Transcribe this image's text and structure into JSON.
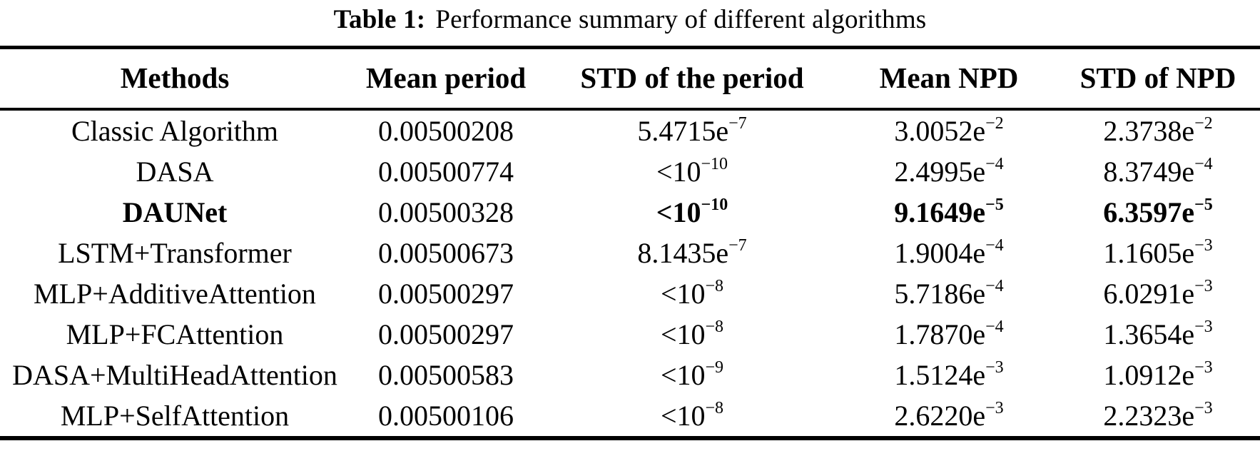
{
  "caption": {
    "label": "Table 1:",
    "text": "Performance summary of different algorithms"
  },
  "columns": [
    "Methods",
    "Mean period",
    "STD of the period",
    "Mean NPD",
    "STD of NPD"
  ],
  "rows": [
    {
      "method": "Classic Algorithm",
      "emphasis": false,
      "mean_period": "0.00500208",
      "std_period": {
        "base": "5.4715e",
        "sup": "−7"
      },
      "mean_npd": {
        "base": "3.0052e",
        "sup": "−2"
      },
      "std_npd": {
        "base": "2.3738e",
        "sup": "−2"
      }
    },
    {
      "method": "DASA",
      "emphasis": false,
      "mean_period": "0.00500774",
      "std_period": {
        "base": "<10",
        "sup": "−10"
      },
      "mean_npd": {
        "base": "2.4995e",
        "sup": "−4"
      },
      "std_npd": {
        "base": "8.3749e",
        "sup": "−4"
      }
    },
    {
      "method": "DAUNet",
      "emphasis": true,
      "mean_period": "0.00500328",
      "std_period": {
        "base": "<10",
        "sup": "−10"
      },
      "mean_npd": {
        "base": "9.1649e",
        "sup": "−5"
      },
      "std_npd": {
        "base": "6.3597e",
        "sup": "−5"
      }
    },
    {
      "method": "LSTM+Transformer",
      "emphasis": false,
      "mean_period": "0.00500673",
      "std_period": {
        "base": "8.1435e",
        "sup": "−7"
      },
      "mean_npd": {
        "base": "1.9004e",
        "sup": "−4"
      },
      "std_npd": {
        "base": "1.1605e",
        "sup": "−3"
      }
    },
    {
      "method": "MLP+AdditiveAttention",
      "emphasis": false,
      "mean_period": "0.00500297",
      "std_period": {
        "base": "<10",
        "sup": "−8"
      },
      "mean_npd": {
        "base": "5.7186e",
        "sup": "−4"
      },
      "std_npd": {
        "base": "6.0291e",
        "sup": "−3"
      }
    },
    {
      "method": "MLP+FCAttention",
      "emphasis": false,
      "mean_period": "0.00500297",
      "std_period": {
        "base": "<10",
        "sup": "−8"
      },
      "mean_npd": {
        "base": "1.7870e",
        "sup": "−4"
      },
      "std_npd": {
        "base": "1.3654e",
        "sup": "−3"
      }
    },
    {
      "method": "DASA+MultiHeadAttention",
      "emphasis": false,
      "mean_period": "0.00500583",
      "std_period": {
        "base": "<10",
        "sup": "−9"
      },
      "mean_npd": {
        "base": "1.5124e",
        "sup": "−3"
      },
      "std_npd": {
        "base": "1.0912e",
        "sup": "−3"
      }
    },
    {
      "method": "MLP+SelfAttention",
      "emphasis": false,
      "mean_period": "0.00500106",
      "std_period": {
        "base": "<10",
        "sup": "−8"
      },
      "mean_npd": {
        "base": "2.6220e",
        "sup": "−3"
      },
      "std_npd": {
        "base": "2.2323e",
        "sup": "−3"
      }
    }
  ],
  "colors": {
    "text": "#000000",
    "background": "#ffffff",
    "rule": "#000000"
  }
}
